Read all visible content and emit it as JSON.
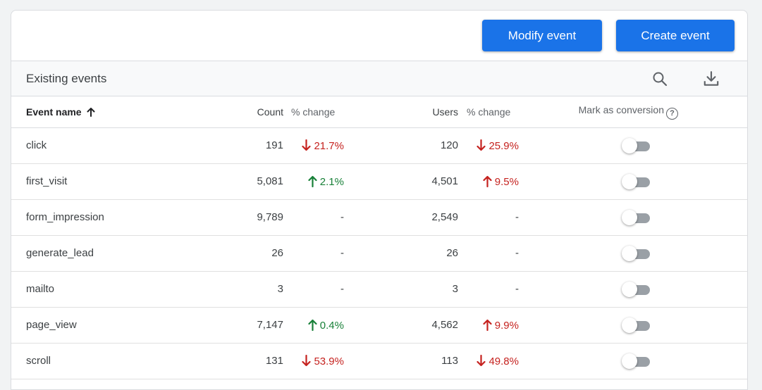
{
  "toolbar": {
    "modify_label": "Modify event",
    "create_label": "Create event",
    "button_color": "#1a73e8"
  },
  "section": {
    "title": "Existing events",
    "icons": [
      "search-icon",
      "download-icon"
    ]
  },
  "columns": {
    "event_name": "Event name",
    "count": "Count",
    "count_change": "% change",
    "users": "Users",
    "users_change": "% change",
    "mark_conversion": "Mark as conversion",
    "help_glyph": "?"
  },
  "rows": [
    {
      "name": "click",
      "count": "191",
      "count_change": "21.7%",
      "count_dir": "down",
      "users": "120",
      "users_change": "25.9%",
      "users_dir": "down",
      "conversion": false
    },
    {
      "name": "first_visit",
      "count": "5,081",
      "count_change": "2.1%",
      "count_dir": "up",
      "users": "4,501",
      "users_change": "9.5%",
      "users_dir": "up-red",
      "conversion": false
    },
    {
      "name": "form_impression",
      "count": "9,789",
      "count_change": "-",
      "count_dir": "none",
      "users": "2,549",
      "users_change": "-",
      "users_dir": "none",
      "conversion": false
    },
    {
      "name": "generate_lead",
      "count": "26",
      "count_change": "-",
      "count_dir": "none",
      "users": "26",
      "users_change": "-",
      "users_dir": "none",
      "conversion": false
    },
    {
      "name": "mailto",
      "count": "3",
      "count_change": "-",
      "count_dir": "none",
      "users": "3",
      "users_change": "-",
      "users_dir": "none",
      "conversion": false
    },
    {
      "name": "page_view",
      "count": "7,147",
      "count_change": "0.4%",
      "count_dir": "up",
      "users": "4,562",
      "users_change": "9.9%",
      "users_dir": "up-red",
      "conversion": false
    },
    {
      "name": "scroll",
      "count": "131",
      "count_change": "53.9%",
      "count_dir": "down",
      "users": "113",
      "users_change": "49.8%",
      "users_dir": "down",
      "conversion": false
    }
  ],
  "colors": {
    "up": "#188038",
    "down": "#c5221f",
    "toggle_off": "#9aa0a6"
  }
}
